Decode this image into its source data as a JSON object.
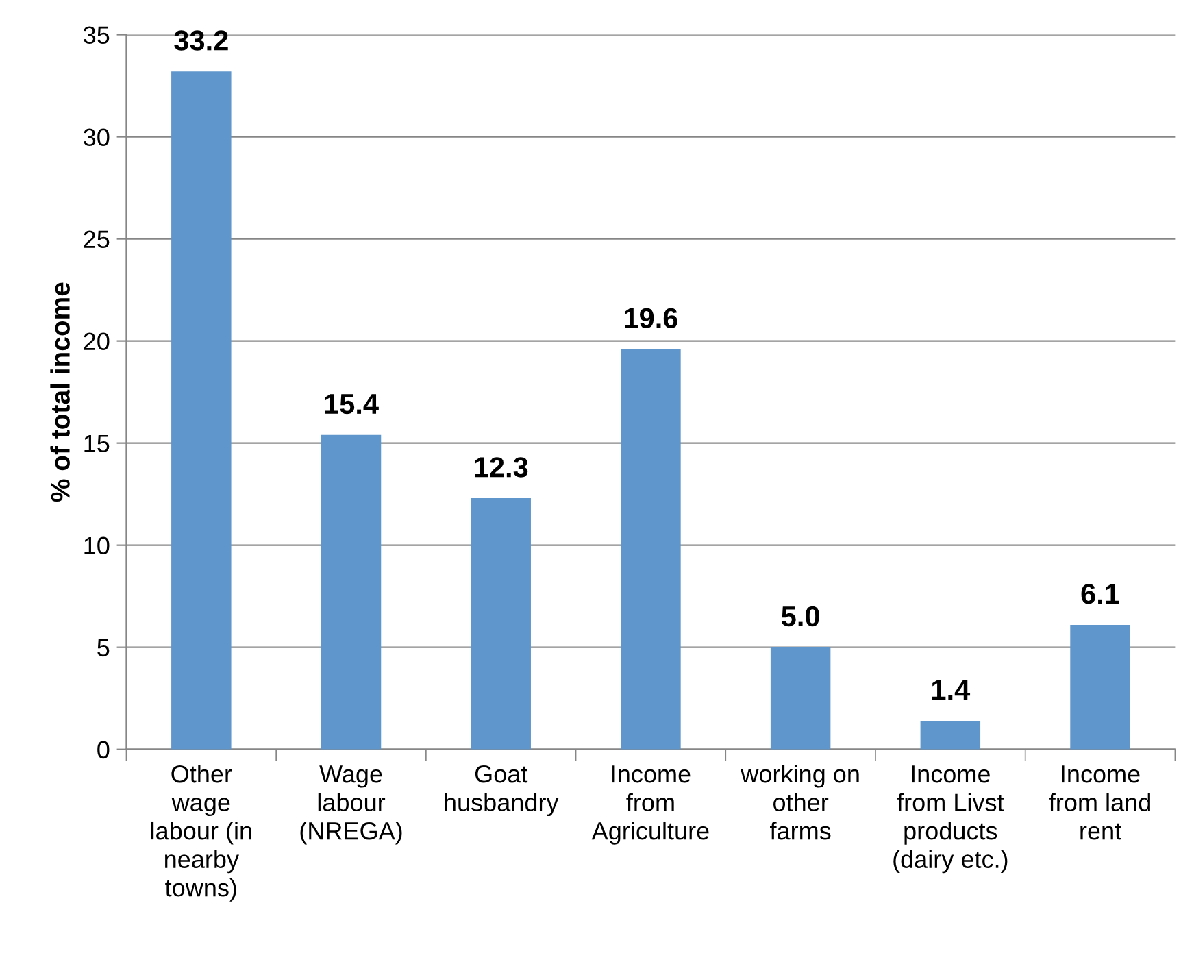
{
  "chart_data": {
    "type": "bar",
    "ylabel": "% of total income",
    "categories": [
      "Other\nwage\nlabour (in\nnearby\ntowns)",
      "Wage\nlabour\n(NREGA)",
      "Goat\nhusbandry",
      "Income\nfrom\nAgriculture",
      "working on\nother\nfarms",
      "Income\nfrom Livst\nproducts\n(dairy etc.)",
      "Income\nfrom land\nrent"
    ],
    "values": [
      33.2,
      15.4,
      12.3,
      19.6,
      5.0,
      1.4,
      6.1
    ],
    "value_labels": [
      "33.2",
      "15.4",
      "12.3",
      "19.6",
      "5.0",
      "1.4",
      "6.1"
    ],
    "color": "#5f96cb",
    "ylim": [
      0,
      35
    ],
    "yticks": [
      0,
      5,
      10,
      15,
      20,
      25,
      30,
      35
    ],
    "grid": "y",
    "legend": false
  }
}
